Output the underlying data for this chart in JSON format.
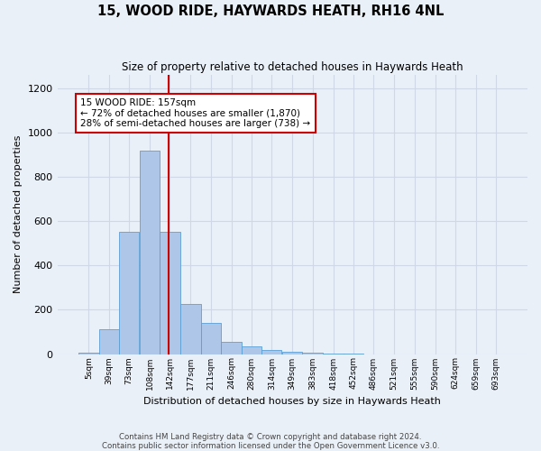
{
  "title": "15, WOOD RIDE, HAYWARDS HEATH, RH16 4NL",
  "subtitle": "Size of property relative to detached houses in Haywards Heath",
  "xlabel": "Distribution of detached houses by size in Haywards Heath",
  "ylabel": "Number of detached properties",
  "bin_labels": [
    "5sqm",
    "39sqm",
    "73sqm",
    "108sqm",
    "142sqm",
    "177sqm",
    "211sqm",
    "246sqm",
    "280sqm",
    "314sqm",
    "349sqm",
    "383sqm",
    "418sqm",
    "452sqm",
    "486sqm",
    "521sqm",
    "555sqm",
    "590sqm",
    "624sqm",
    "659sqm",
    "693sqm"
  ],
  "bar_heights": [
    5,
    110,
    550,
    920,
    550,
    225,
    140,
    55,
    35,
    20,
    10,
    5,
    2,
    1,
    0,
    0,
    0,
    0,
    0,
    0,
    0
  ],
  "bar_color": "#aec6e8",
  "bar_edge_color": "#5a9fd4",
  "vline_x": 157,
  "vline_color": "#cc0000",
  "annotation_line1": "15 WOOD RIDE: 157sqm",
  "annotation_line2": "← 72% of detached houses are smaller (1,870)",
  "annotation_line3": "28% of semi-detached houses are larger (738) →",
  "annotation_box_color": "#ffffff",
  "annotation_box_edge_color": "#cc0000",
  "ylim": [
    0,
    1260
  ],
  "yticks": [
    0,
    200,
    400,
    600,
    800,
    1000,
    1200
  ],
  "grid_color": "#d0d8e8",
  "background_color": "#eaf0f8",
  "footer_line1": "Contains HM Land Registry data © Crown copyright and database right 2024.",
  "footer_line2": "Contains public sector information licensed under the Open Government Licence v3.0.",
  "bin_starts": [
    5,
    39,
    73,
    108,
    142,
    177,
    211,
    246,
    280,
    314,
    349,
    383,
    418,
    452,
    486,
    521,
    555,
    590,
    624,
    659,
    693
  ],
  "bin_width": 34
}
